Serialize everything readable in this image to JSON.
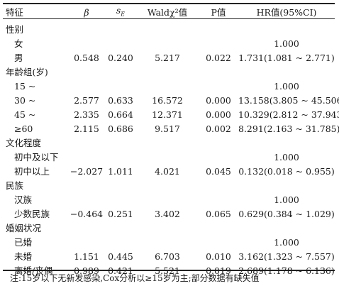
{
  "headers": {
    "feature": "特征",
    "beta": "β",
    "se_base": "s",
    "se_sub": "E",
    "wald": "Waldχ²值",
    "p": "P值",
    "hr": "HR值(95%CI)"
  },
  "rows": [
    {
      "type": "group",
      "label": "性别"
    },
    {
      "type": "sub",
      "label": "女",
      "beta": "",
      "se": "",
      "wald": "",
      "p": "",
      "hr": "1.000"
    },
    {
      "type": "sub",
      "label": "男",
      "beta": "0.548",
      "se": "0.240",
      "wald": "5.217",
      "p": "0.022",
      "hr": "1.731(1.081 ~ 2.771)"
    },
    {
      "type": "group",
      "label": "年龄组(岁)"
    },
    {
      "type": "sub",
      "label": "15 ~",
      "beta": "",
      "se": "",
      "wald": "",
      "p": "",
      "hr": "1.000"
    },
    {
      "type": "sub",
      "label": "30 ~",
      "beta": "2.577",
      "se": "0.633",
      "wald": "16.572",
      "p": "0.000",
      "hr": "13.158(3.805 ~ 45.506)"
    },
    {
      "type": "sub",
      "label": "45 ~",
      "beta": "2.335",
      "se": "0.664",
      "wald": "12.371",
      "p": "0.000",
      "hr": "10.329(2.812 ~ 37.943)"
    },
    {
      "type": "sub",
      "label": "≥60",
      "beta": "2.115",
      "se": "0.686",
      "wald": "9.517",
      "p": "0.002",
      "hr": "8.291(2.163 ~ 31.785)"
    },
    {
      "type": "group",
      "label": "文化程度"
    },
    {
      "type": "sub",
      "label": "初中及以下",
      "beta": "",
      "se": "",
      "wald": "",
      "p": "",
      "hr": "1.000"
    },
    {
      "type": "sub",
      "label": "初中以上",
      "beta": "−2.027",
      "se": "1.011",
      "wald": "4.021",
      "p": "0.045",
      "hr": "0.132(0.018 ~ 0.955)"
    },
    {
      "type": "group",
      "label": "民族"
    },
    {
      "type": "sub",
      "label": "汉族",
      "beta": "",
      "se": "",
      "wald": "",
      "p": "",
      "hr": "1.000"
    },
    {
      "type": "sub",
      "label": "少数民族",
      "beta": "−0.464",
      "se": "0.251",
      "wald": "3.402",
      "p": "0.065",
      "hr": "0.629(0.384 ~ 1.029)"
    },
    {
      "type": "group",
      "label": "婚姻状况"
    },
    {
      "type": "sub",
      "label": "已婚",
      "beta": "",
      "se": "",
      "wald": "",
      "p": "",
      "hr": "1.000"
    },
    {
      "type": "sub",
      "label": "未婚",
      "beta": "1.151",
      "se": "0.445",
      "wald": "6.703",
      "p": "0.010",
      "hr": "3.162(1.323 ~ 7.557)"
    },
    {
      "type": "sub",
      "label": "离婚/丧偶",
      "beta": "0.989",
      "se": "0.421",
      "wald": "5.521",
      "p": "0.019",
      "hr": "2.689(1.178 ~ 6.136)"
    }
  ],
  "footnote": "注:15岁以下无新发感染,Cox分析以≥15岁为主;部分数据有缺失值"
}
